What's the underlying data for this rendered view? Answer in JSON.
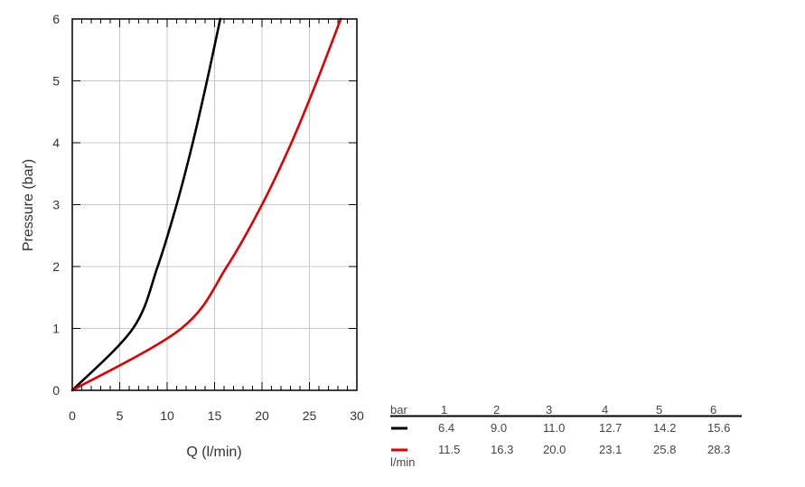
{
  "chart_data": {
    "type": "line",
    "title": "",
    "xlabel": "Q (l/min)",
    "ylabel": "Pressure (bar)",
    "xlim": [
      0,
      30
    ],
    "ylim": [
      0,
      6
    ],
    "x_ticks": [
      "0",
      "5",
      "10",
      "15",
      "20",
      "25",
      "30"
    ],
    "y_ticks": [
      "0",
      "1",
      "2",
      "3",
      "4",
      "5",
      "6"
    ],
    "grid": true,
    "series": [
      {
        "color": "#000000",
        "x": [
          0,
          6.4,
          9.0,
          11.0,
          12.7,
          14.2,
          15.6
        ],
        "y": [
          0,
          1,
          2,
          3,
          4,
          5,
          6
        ]
      },
      {
        "color": "#e00000",
        "x": [
          0,
          11.5,
          16.3,
          20.0,
          23.1,
          25.8,
          28.3
        ],
        "y": [
          0,
          1,
          2,
          3,
          4,
          5,
          6
        ]
      }
    ]
  },
  "table": {
    "header_label": "bar",
    "unit_label": "l/min",
    "pressures": [
      "1",
      "2",
      "3",
      "4",
      "5",
      "6"
    ],
    "rows": [
      {
        "color": "#000000",
        "values": [
          "6.4",
          "9.0",
          "11.0",
          "12.7",
          "14.2",
          "15.6"
        ]
      },
      {
        "color": "#e00000",
        "values": [
          "11.5",
          "16.3",
          "20.0",
          "23.1",
          "25.8",
          "28.3"
        ]
      }
    ]
  }
}
